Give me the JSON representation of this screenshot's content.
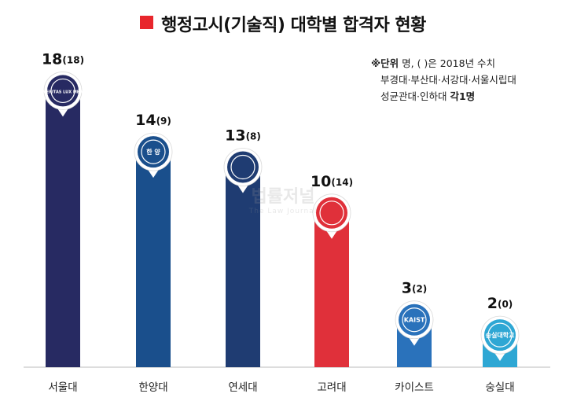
{
  "chart_data": {
    "type": "bar",
    "title": "행정고시(기술직) 대학별 합격자 현황",
    "categories": [
      "서울대",
      "한양대",
      "연세대",
      "고려대",
      "카이스트",
      "숭실대"
    ],
    "values": [
      18,
      14,
      13,
      10,
      3,
      2
    ],
    "values_2018": [
      18,
      9,
      8,
      14,
      2,
      0
    ],
    "value_labels": [
      "18",
      "14",
      "13",
      "10",
      "3",
      "2"
    ],
    "value_2018_labels": [
      "(18)",
      "(9)",
      "(8)",
      "(14)",
      "(2)",
      "(0)"
    ],
    "bar_colors": [
      "#272a62",
      "#1a4f8c",
      "#1f3c72",
      "#e0303a",
      "#2a72bb",
      "#2ea7d4"
    ],
    "ylim": [
      0,
      19
    ],
    "grid": false,
    "logo_texts": [
      "VERITAS LUX MEA",
      "한 양",
      "",
      "",
      "KAIST",
      "숭실대학교"
    ]
  },
  "note": {
    "unit_prefix": "※단위",
    "unit_rest": " 명, (   )은 2018년 수치",
    "line2": "부경대·부산대·서강대·서울시립대",
    "line3": "성균관대·인하대",
    "line3_each": "각1명"
  },
  "watermark": {
    "line1": "법률저널",
    "line2": "The Law Journal"
  },
  "colors": {
    "title_square": "#e8262c",
    "baseline": "#bbbbbb"
  }
}
